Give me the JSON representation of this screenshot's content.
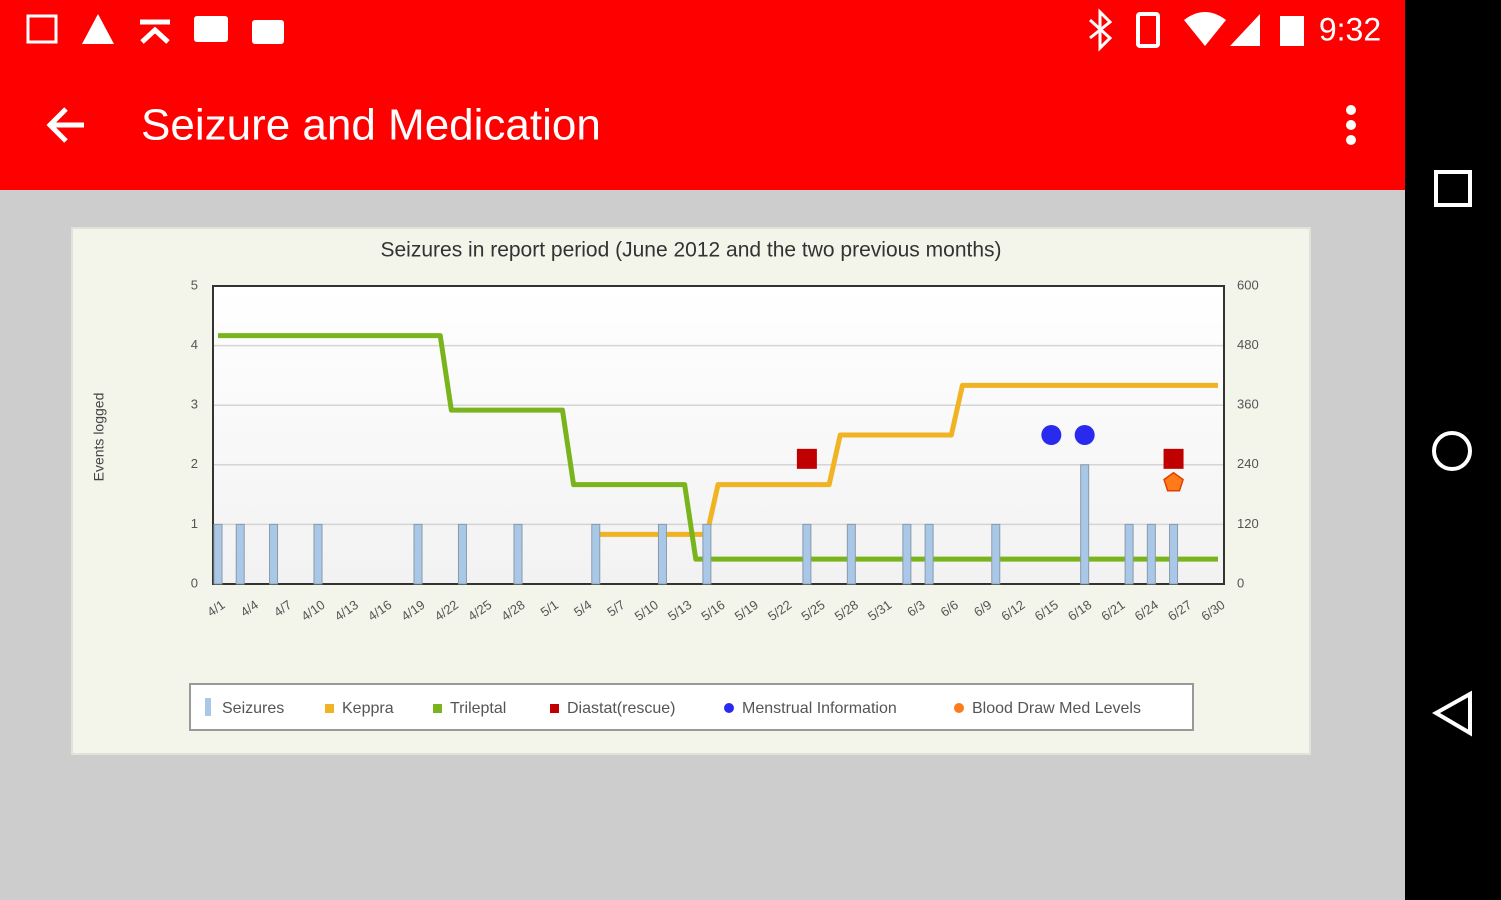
{
  "status_bar": {
    "time": "9:32"
  },
  "app_bar": {
    "title": "Seizure and Medication"
  },
  "chart_data": {
    "type": "combo",
    "title": "Seizures in report period (June 2012 and the two previous months)",
    "y_label": "Events logged",
    "categories": [
      "4/1",
      null,
      null,
      "4/4",
      null,
      null,
      "4/7",
      null,
      null,
      "4/10",
      null,
      null,
      "4/13",
      null,
      null,
      "4/16",
      null,
      null,
      "4/19",
      null,
      null,
      "4/22",
      null,
      null,
      "4/25",
      null,
      null,
      "4/28",
      null,
      null,
      "5/1",
      null,
      null,
      "5/4",
      null,
      null,
      "5/7",
      null,
      null,
      "5/10",
      null,
      null,
      "5/13",
      null,
      null,
      "5/16",
      null,
      null,
      "5/19",
      null,
      null,
      "5/22",
      null,
      null,
      "5/25",
      null,
      null,
      "5/28",
      null,
      null,
      "5/31",
      null,
      null,
      "6/3",
      null,
      null,
      "6/6",
      null,
      null,
      "6/9",
      null,
      null,
      "6/12",
      null,
      null,
      "6/15",
      null,
      null,
      "6/18",
      null,
      null,
      "6/21",
      null,
      null,
      "6/24",
      null,
      null,
      "6/27",
      null,
      null,
      "6/30"
    ],
    "ylim": [
      0,
      5
    ],
    "yticks": [
      0,
      1,
      2,
      3,
      4,
      5
    ],
    "y2lim": [
      0,
      600
    ],
    "y2ticks": [
      0,
      120,
      240,
      360,
      480,
      600
    ],
    "grid": true,
    "series": [
      {
        "name": "Seizures",
        "type": "bar",
        "color": "#a9c8e8",
        "values": [
          1,
          null,
          1,
          null,
          null,
          1,
          null,
          null,
          null,
          1,
          null,
          null,
          null,
          null,
          null,
          null,
          null,
          null,
          1,
          null,
          null,
          null,
          1,
          null,
          null,
          null,
          null,
          1,
          null,
          null,
          null,
          null,
          null,
          null,
          1,
          null,
          null,
          null,
          null,
          null,
          1,
          null,
          null,
          null,
          1,
          null,
          null,
          null,
          null,
          null,
          null,
          null,
          null,
          1,
          null,
          null,
          null,
          1,
          null,
          null,
          null,
          null,
          1,
          null,
          1,
          null,
          null,
          null,
          null,
          null,
          1,
          null,
          null,
          null,
          null,
          null,
          null,
          null,
          2,
          null,
          null,
          null,
          1,
          null,
          1,
          null,
          1,
          null,
          null,
          null,
          null
        ]
      },
      {
        "name": "Keppra",
        "type": "line",
        "axis": "y2",
        "color": "#f0b323",
        "values": [
          null,
          null,
          null,
          null,
          null,
          null,
          null,
          null,
          null,
          null,
          null,
          null,
          null,
          null,
          null,
          null,
          null,
          null,
          null,
          null,
          null,
          null,
          null,
          null,
          null,
          null,
          null,
          null,
          null,
          null,
          null,
          null,
          null,
          null,
          100,
          100,
          100,
          100,
          100,
          100,
          100,
          100,
          100,
          100,
          100,
          200,
          200,
          200,
          200,
          200,
          200,
          200,
          200,
          200,
          200,
          200,
          300,
          300,
          300,
          300,
          300,
          300,
          300,
          300,
          300,
          300,
          300,
          400,
          400,
          400,
          400,
          400,
          400,
          400,
          400,
          400,
          400,
          400,
          400,
          400,
          400,
          400,
          400,
          400,
          400,
          400,
          400,
          400,
          400,
          400,
          400
        ]
      },
      {
        "name": "Trileptal",
        "type": "line",
        "axis": "y2",
        "color": "#79b41c",
        "values": [
          500,
          500,
          500,
          500,
          500,
          500,
          500,
          500,
          500,
          500,
          500,
          500,
          500,
          500,
          500,
          500,
          500,
          500,
          500,
          500,
          500,
          350,
          350,
          350,
          350,
          350,
          350,
          350,
          350,
          350,
          350,
          350,
          200,
          200,
          200,
          200,
          200,
          200,
          200,
          200,
          200,
          200,
          200,
          50,
          50,
          50,
          50,
          50,
          50,
          50,
          50,
          50,
          50,
          50,
          50,
          50,
          50,
          50,
          50,
          50,
          50,
          50,
          50,
          50,
          50,
          50,
          50,
          50,
          50,
          50,
          50,
          50,
          50,
          50,
          50,
          50,
          50,
          50,
          50,
          50,
          50,
          50,
          50,
          50,
          50,
          50,
          50,
          50,
          50,
          50,
          50
        ]
      },
      {
        "name": "Diastat(rescue)",
        "type": "scatter",
        "marker": "square",
        "color": "#c00000",
        "values": [
          null,
          null,
          null,
          null,
          null,
          null,
          null,
          null,
          null,
          null,
          null,
          null,
          null,
          null,
          null,
          null,
          null,
          null,
          null,
          null,
          null,
          null,
          null,
          null,
          null,
          null,
          null,
          null,
          null,
          null,
          null,
          null,
          null,
          null,
          null,
          null,
          null,
          null,
          null,
          null,
          null,
          null,
          null,
          null,
          null,
          null,
          null,
          null,
          null,
          null,
          null,
          null,
          null,
          2.1,
          null,
          null,
          null,
          null,
          null,
          null,
          null,
          null,
          null,
          null,
          null,
          null,
          null,
          null,
          null,
          null,
          null,
          null,
          null,
          null,
          null,
          null,
          null,
          null,
          null,
          null,
          null,
          null,
          null,
          null,
          null,
          null,
          2.1,
          null,
          null,
          null,
          null
        ]
      },
      {
        "name": "Menstrual Information",
        "type": "scatter",
        "marker": "circle",
        "color": "#2a2aee",
        "values": [
          null,
          null,
          null,
          null,
          null,
          null,
          null,
          null,
          null,
          null,
          null,
          null,
          null,
          null,
          null,
          null,
          null,
          null,
          null,
          null,
          null,
          null,
          null,
          null,
          null,
          null,
          null,
          null,
          null,
          null,
          null,
          null,
          null,
          null,
          null,
          null,
          null,
          null,
          null,
          null,
          null,
          null,
          null,
          null,
          null,
          null,
          null,
          null,
          null,
          null,
          null,
          null,
          null,
          null,
          null,
          null,
          null,
          null,
          null,
          null,
          null,
          null,
          null,
          null,
          null,
          null,
          null,
          null,
          null,
          null,
          null,
          null,
          null,
          null,
          null,
          2.5,
          null,
          null,
          2.5,
          null,
          null,
          null,
          null,
          null,
          null,
          null,
          null,
          null,
          null,
          null,
          null
        ]
      },
      {
        "name": "Blood Draw Med Levels",
        "type": "scatter",
        "marker": "pentagon",
        "color": "#ff7a1a",
        "values": [
          null,
          null,
          null,
          null,
          null,
          null,
          null,
          null,
          null,
          null,
          null,
          null,
          null,
          null,
          null,
          null,
          null,
          null,
          null,
          null,
          null,
          null,
          null,
          null,
          null,
          null,
          null,
          null,
          null,
          null,
          null,
          null,
          null,
          null,
          null,
          null,
          null,
          null,
          null,
          null,
          null,
          null,
          null,
          null,
          null,
          null,
          null,
          null,
          null,
          null,
          null,
          null,
          null,
          null,
          null,
          null,
          null,
          null,
          null,
          null,
          null,
          null,
          null,
          null,
          null,
          null,
          null,
          null,
          null,
          null,
          null,
          null,
          null,
          null,
          null,
          null,
          null,
          null,
          null,
          null,
          null,
          null,
          null,
          null,
          null,
          null,
          1.7,
          null,
          null,
          null,
          null
        ]
      }
    ]
  }
}
